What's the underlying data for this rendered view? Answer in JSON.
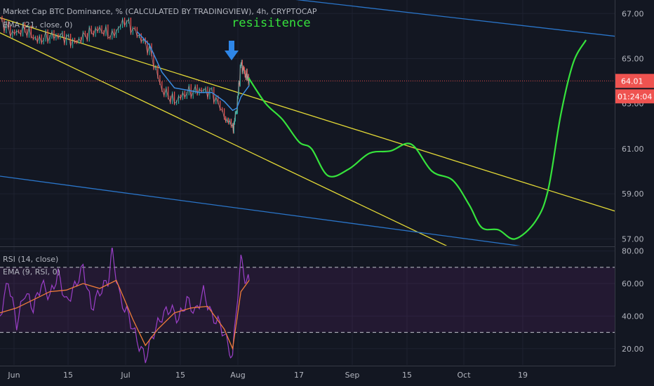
{
  "chart_data": [
    {
      "type": "line",
      "title": "Market Cap BTC Dominance, % (CALCULATED BY TRADINGVIEW), 4h, CRYPTOCAP",
      "ema_label": "EMA (21, close, 0)",
      "ylim": [
        56.7,
        67.6
      ],
      "y_ticks": [
        "67.00",
        "65.00",
        "63.00",
        "61.00",
        "59.00",
        "57.00"
      ],
      "x_ticks": [
        "Jun",
        "15",
        "Jul",
        "15",
        "Aug",
        "17",
        "Sep",
        "15",
        "Oct",
        "19"
      ],
      "current_price": "64.01",
      "countdown": "01:24:04",
      "annotation": "resisitence",
      "price_series": [
        {
          "t": 0,
          "v": 66.7
        },
        {
          "t": 3,
          "v": 66.1
        },
        {
          "t": 6,
          "v": 66.3
        },
        {
          "t": 9,
          "v": 65.8
        },
        {
          "t": 12,
          "v": 66.0
        },
        {
          "t": 15,
          "v": 66.0
        },
        {
          "t": 18,
          "v": 65.7
        },
        {
          "t": 21,
          "v": 66.1
        },
        {
          "t": 24,
          "v": 66.3
        },
        {
          "t": 27,
          "v": 66.0
        },
        {
          "t": 30,
          "v": 66.7
        },
        {
          "t": 33,
          "v": 66.1
        },
        {
          "t": 36,
          "v": 65.4
        },
        {
          "t": 39,
          "v": 63.6
        },
        {
          "t": 42,
          "v": 63.1
        },
        {
          "t": 45,
          "v": 63.5
        },
        {
          "t": 48,
          "v": 63.6
        },
        {
          "t": 51,
          "v": 63.5
        },
        {
          "t": 54,
          "v": 62.5
        },
        {
          "t": 56,
          "v": 61.8
        },
        {
          "t": 57,
          "v": 62.8
        },
        {
          "t": 58,
          "v": 64.8
        },
        {
          "t": 59,
          "v": 64.3
        },
        {
          "t": 60,
          "v": 64.1
        }
      ],
      "ema_series": [
        {
          "t": 33,
          "v": 66.2
        },
        {
          "t": 36,
          "v": 65.6
        },
        {
          "t": 39,
          "v": 64.4
        },
        {
          "t": 42,
          "v": 63.7
        },
        {
          "t": 45,
          "v": 63.6
        },
        {
          "t": 48,
          "v": 63.5
        },
        {
          "t": 51,
          "v": 63.5
        },
        {
          "t": 54,
          "v": 63.1
        },
        {
          "t": 56,
          "v": 62.7
        },
        {
          "t": 57,
          "v": 62.8
        },
        {
          "t": 58,
          "v": 63.3
        },
        {
          "t": 60,
          "v": 63.8
        }
      ],
      "projection": [
        {
          "t": 60,
          "v": 64.1
        },
        {
          "t": 64,
          "v": 63.0
        },
        {
          "t": 68,
          "v": 62.3
        },
        {
          "t": 72,
          "v": 61.3
        },
        {
          "t": 75,
          "v": 61.0
        },
        {
          "t": 79,
          "v": 59.8
        },
        {
          "t": 84,
          "v": 60.1
        },
        {
          "t": 89,
          "v": 60.8
        },
        {
          "t": 94,
          "v": 60.9
        },
        {
          "t": 99,
          "v": 61.2
        },
        {
          "t": 104,
          "v": 60.0
        },
        {
          "t": 109,
          "v": 59.6
        },
        {
          "t": 113,
          "v": 58.5
        },
        {
          "t": 116,
          "v": 57.5
        },
        {
          "t": 120,
          "v": 57.4
        },
        {
          "t": 124,
          "v": 57.0
        },
        {
          "t": 129,
          "v": 57.8
        },
        {
          "t": 132,
          "v": 59.2
        },
        {
          "t": 135,
          "v": 62.5
        },
        {
          "t": 138,
          "v": 64.8
        },
        {
          "t": 141,
          "v": 65.8
        }
      ]
    },
    {
      "type": "line",
      "title": "RSI (14, close)",
      "ema_label": "EMA (9, RSI, 0)",
      "ylim": [
        10,
        82
      ],
      "y_ticks": [
        "80.00",
        "60.00",
        "40.00",
        "20.00"
      ],
      "bands": [
        70,
        30
      ],
      "rsi_series": [
        {
          "t": 0,
          "v": 40
        },
        {
          "t": 2,
          "v": 62
        },
        {
          "t": 4,
          "v": 35
        },
        {
          "t": 6,
          "v": 55
        },
        {
          "t": 8,
          "v": 45
        },
        {
          "t": 10,
          "v": 60
        },
        {
          "t": 12,
          "v": 52
        },
        {
          "t": 14,
          "v": 66
        },
        {
          "t": 16,
          "v": 48
        },
        {
          "t": 18,
          "v": 58
        },
        {
          "t": 20,
          "v": 70
        },
        {
          "t": 22,
          "v": 45
        },
        {
          "t": 24,
          "v": 55
        },
        {
          "t": 26,
          "v": 62
        },
        {
          "t": 27,
          "v": 79
        },
        {
          "t": 29,
          "v": 50
        },
        {
          "t": 31,
          "v": 40
        },
        {
          "t": 33,
          "v": 25
        },
        {
          "t": 35,
          "v": 14
        },
        {
          "t": 37,
          "v": 30
        },
        {
          "t": 39,
          "v": 40
        },
        {
          "t": 41,
          "v": 45
        },
        {
          "t": 43,
          "v": 38
        },
        {
          "t": 45,
          "v": 50
        },
        {
          "t": 47,
          "v": 42
        },
        {
          "t": 49,
          "v": 55
        },
        {
          "t": 51,
          "v": 40
        },
        {
          "t": 53,
          "v": 35
        },
        {
          "t": 55,
          "v": 22
        },
        {
          "t": 56,
          "v": 14
        },
        {
          "t": 57,
          "v": 48
        },
        {
          "t": 58,
          "v": 74
        },
        {
          "t": 59,
          "v": 64
        },
        {
          "t": 60,
          "v": 62
        }
      ],
      "rsi_ema_series": [
        {
          "t": 0,
          "v": 42
        },
        {
          "t": 4,
          "v": 45
        },
        {
          "t": 8,
          "v": 50
        },
        {
          "t": 12,
          "v": 55
        },
        {
          "t": 16,
          "v": 56
        },
        {
          "t": 20,
          "v": 60
        },
        {
          "t": 24,
          "v": 57
        },
        {
          "t": 28,
          "v": 62
        },
        {
          "t": 32,
          "v": 38
        },
        {
          "t": 35,
          "v": 22
        },
        {
          "t": 38,
          "v": 32
        },
        {
          "t": 42,
          "v": 42
        },
        {
          "t": 46,
          "v": 45
        },
        {
          "t": 50,
          "v": 46
        },
        {
          "t": 54,
          "v": 32
        },
        {
          "t": 56,
          "v": 20
        },
        {
          "t": 58,
          "v": 55
        },
        {
          "t": 60,
          "v": 62
        }
      ]
    }
  ]
}
